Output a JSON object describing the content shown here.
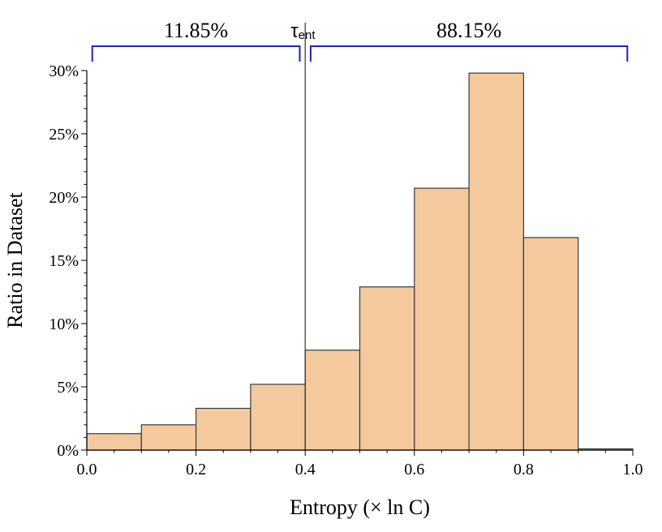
{
  "chart_data": {
    "type": "bar",
    "title": "",
    "xlabel": "Entropy (× ln C)",
    "ylabel": "Ratio in Dataset",
    "xlim": [
      0.0,
      1.0
    ],
    "ylim": [
      0,
      30
    ],
    "bin_width": 0.1,
    "bins": [
      {
        "start": 0.0,
        "end": 0.1,
        "value": 1.3
      },
      {
        "start": 0.1,
        "end": 0.2,
        "value": 2.0
      },
      {
        "start": 0.2,
        "end": 0.3,
        "value": 3.3
      },
      {
        "start": 0.3,
        "end": 0.4,
        "value": 5.2
      },
      {
        "start": 0.4,
        "end": 0.5,
        "value": 7.9
      },
      {
        "start": 0.5,
        "end": 0.6,
        "value": 12.9
      },
      {
        "start": 0.6,
        "end": 0.7,
        "value": 20.7
      },
      {
        "start": 0.7,
        "end": 0.8,
        "value": 29.8
      },
      {
        "start": 0.8,
        "end": 0.9,
        "value": 16.8
      },
      {
        "start": 0.9,
        "end": 1.0,
        "value": 0.1
      }
    ],
    "x_ticks": [
      {
        "value": 0.0,
        "label": "0.0"
      },
      {
        "value": 0.2,
        "label": "0.2"
      },
      {
        "value": 0.4,
        "label": "0.4"
      },
      {
        "value": 0.6,
        "label": "0.6"
      },
      {
        "value": 0.8,
        "label": "0.8"
      },
      {
        "value": 1.0,
        "label": "1.0"
      }
    ],
    "y_ticks": [
      {
        "value": 0,
        "label": "0%"
      },
      {
        "value": 5,
        "label": "5%"
      },
      {
        "value": 10,
        "label": "10%"
      },
      {
        "value": 15,
        "label": "15%"
      },
      {
        "value": 20,
        "label": "20%"
      },
      {
        "value": 25,
        "label": "25%"
      },
      {
        "value": 30,
        "label": "30%"
      }
    ],
    "threshold": {
      "x": 0.4,
      "label_main": "τ",
      "label_sub": "ent"
    },
    "brace_left": {
      "from": 0.01,
      "to": 0.39,
      "label": "11.85%"
    },
    "brace_right": {
      "from": 0.41,
      "to": 0.99,
      "label": "88.15%"
    },
    "grid": false,
    "colors": {
      "bar_fill": "#f4c99e",
      "bar_edge": "#3a3a3a",
      "brace": "#1a24c8",
      "axis": "#000000"
    }
  }
}
